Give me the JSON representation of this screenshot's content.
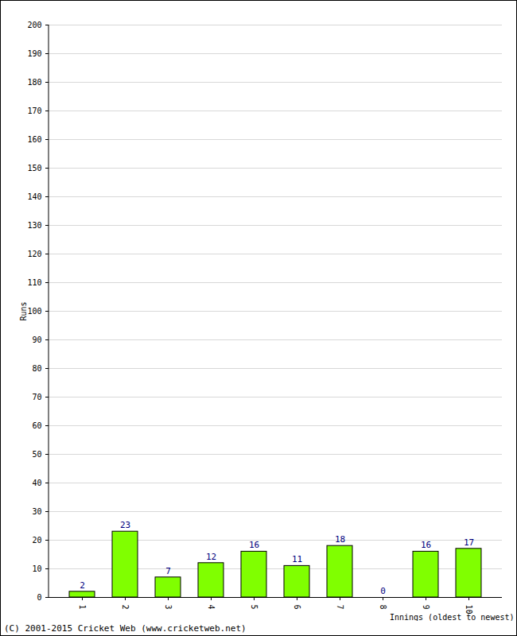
{
  "chart_data": {
    "type": "bar",
    "categories": [
      "1",
      "2",
      "3",
      "4",
      "5",
      "6",
      "7",
      "8",
      "9",
      "10"
    ],
    "values": [
      2,
      23,
      7,
      12,
      16,
      11,
      18,
      0,
      16,
      17
    ],
    "color": "#80ff00",
    "ylim": [
      0,
      200
    ],
    "yticks": [
      0,
      10,
      20,
      30,
      40,
      50,
      60,
      70,
      80,
      90,
      100,
      110,
      120,
      130,
      140,
      150,
      160,
      170,
      180,
      190,
      200
    ],
    "grid": true,
    "data_labels": true,
    "y_label": "Runs",
    "x_label": "Innings (oldest to newest)",
    "caption": "(C) 2001-2015 Cricket Web (www.cricketweb.net)"
  }
}
